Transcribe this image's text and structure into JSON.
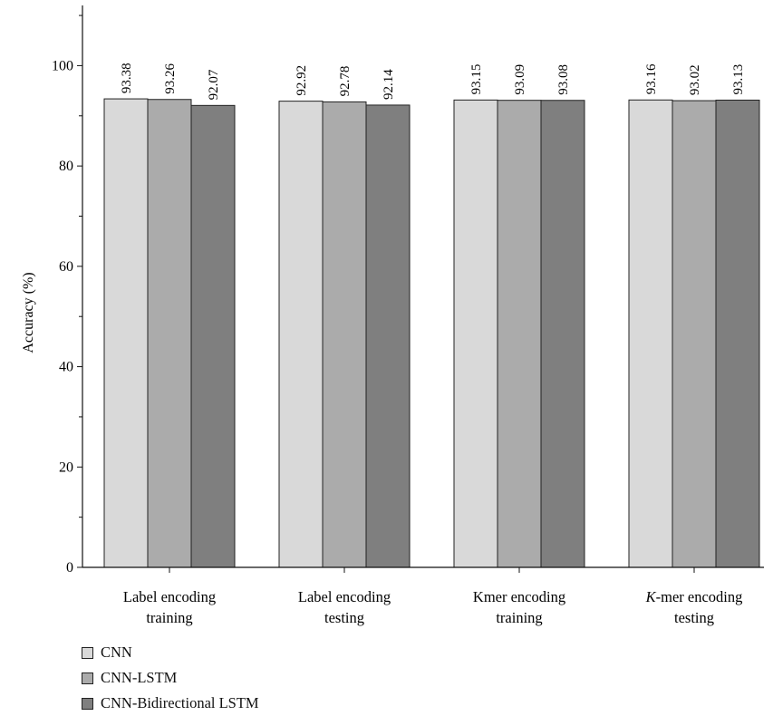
{
  "chart_data": {
    "type": "bar",
    "title": "",
    "ylabel": "Accuracy (%)",
    "xlabel": "",
    "ylim": [
      0,
      112
    ],
    "yticks": [
      0,
      20,
      40,
      60,
      80,
      100
    ],
    "categories": [
      [
        "Label encoding",
        "training"
      ],
      [
        "Label encoding",
        "testing"
      ],
      [
        "Kmer encoding",
        "training"
      ],
      [
        "-mer encoding",
        "testing"
      ]
    ],
    "category_italic_prefix": [
      "",
      "",
      "",
      "K"
    ],
    "series": [
      {
        "name": "CNN",
        "color": "#d9d9d9",
        "values": [
          93.38,
          92.92,
          93.15,
          93.16
        ]
      },
      {
        "name": "CNN-LSTM",
        "color": "#ababab",
        "values": [
          93.26,
          92.78,
          93.09,
          93.02
        ]
      },
      {
        "name": "CNN-Bidirectional LSTM",
        "color": "#7f7f7f",
        "values": [
          92.07,
          92.14,
          93.08,
          93.13
        ]
      }
    ],
    "value_labels": [
      [
        "93.38",
        "93.26",
        "92.07"
      ],
      [
        "92.92",
        "92.78",
        "92.14"
      ],
      [
        "93.15",
        "93.09",
        "93.08"
      ],
      [
        "93.16",
        "93.02",
        "93.13"
      ]
    ],
    "grid": false,
    "legend_position": "bottom-left"
  }
}
